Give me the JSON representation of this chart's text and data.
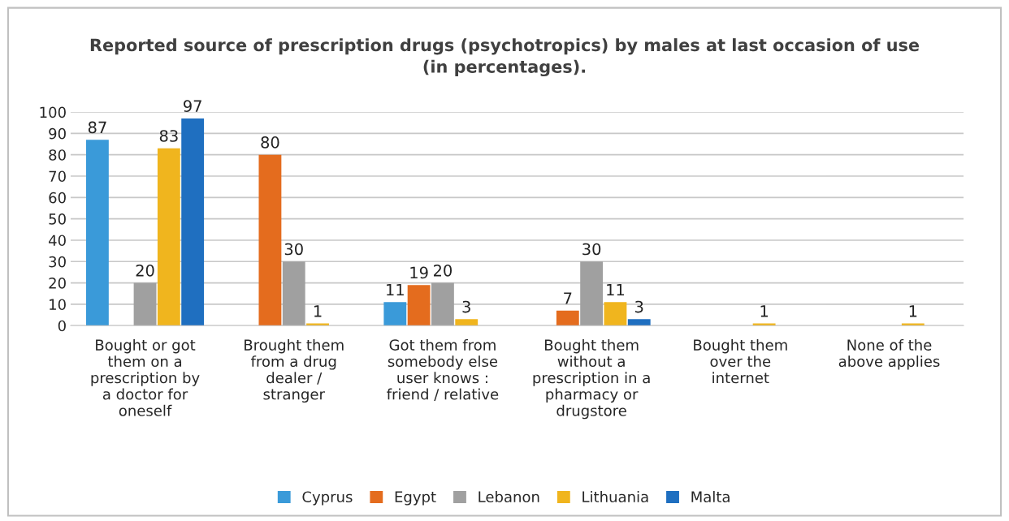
{
  "chart_data": {
    "type": "bar",
    "title": "Reported source of prescription drugs (psychotropics) by males at last occasion of use\n(in percentages).",
    "categories": [
      "Bought or got\nthem on a\nprescription by\na doctor for\noneself",
      "Brought them\nfrom a drug\ndealer /\nstranger",
      "Got them from\nsomebody else\nuser knows :\nfriend / relative",
      "Bought them\nwithout a\nprescription in a\npharmacy or\ndrugstore",
      "Bought them\nover the\ninternet",
      "None of the\nabove applies"
    ],
    "series": [
      {
        "name": "Cyprus",
        "color": "#3a9ad9",
        "values": [
          87,
          null,
          11,
          null,
          null,
          null
        ]
      },
      {
        "name": "Egypt",
        "color": "#e46c1e",
        "values": [
          null,
          80,
          19,
          7,
          null,
          null
        ]
      },
      {
        "name": "Lebanon",
        "color": "#a0a0a0",
        "values": [
          20,
          30,
          20,
          30,
          null,
          null
        ]
      },
      {
        "name": "Lithuania",
        "color": "#f0b51e",
        "values": [
          83,
          1,
          3,
          11,
          1,
          1
        ]
      },
      {
        "name": "Malta",
        "color": "#1f6fc0",
        "values": [
          97,
          null,
          null,
          3,
          null,
          null
        ]
      }
    ],
    "ylim": [
      0,
      100
    ],
    "yticks": [
      0,
      10,
      20,
      30,
      40,
      50,
      60,
      70,
      80,
      90,
      100
    ],
    "grid": "y",
    "legend": "bottom",
    "data_labels": true
  }
}
